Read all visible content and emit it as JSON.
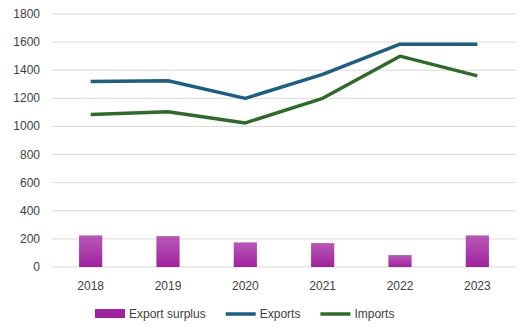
{
  "chart_data": {
    "type": "combo",
    "categories": [
      "2018",
      "2019",
      "2020",
      "2021",
      "2022",
      "2023"
    ],
    "series": [
      {
        "name": "Export surplus",
        "type": "bar",
        "color": "#a0229f",
        "values": [
          225,
          220,
          175,
          170,
          85,
          225
        ]
      },
      {
        "name": "Exports",
        "type": "line",
        "color": "#1f5e7e",
        "values": [
          1320,
          1325,
          1200,
          1370,
          1585,
          1585
        ]
      },
      {
        "name": "Imports",
        "type": "line",
        "color": "#2f6a2c",
        "values": [
          1085,
          1105,
          1025,
          1200,
          1500,
          1360
        ]
      }
    ],
    "ylim": [
      0,
      1800
    ],
    "yticks": [
      0,
      200,
      400,
      600,
      800,
      1000,
      1200,
      1400,
      1600,
      1800
    ],
    "grid": true,
    "legend": "bottom"
  }
}
